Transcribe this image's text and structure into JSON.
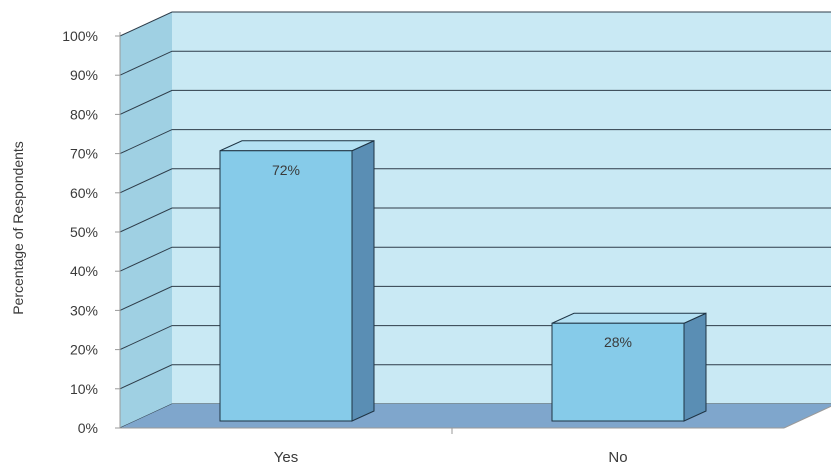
{
  "chart_data": {
    "type": "bar",
    "categories": [
      "Yes",
      "No"
    ],
    "values": [
      72,
      28
    ],
    "data_labels": [
      "72%",
      "28%"
    ],
    "ylabel": "Percentage of Respondents",
    "xlabel": "",
    "ylim": [
      0,
      100
    ],
    "yticks": [
      0,
      10,
      20,
      30,
      40,
      50,
      60,
      70,
      80,
      90,
      100
    ],
    "ytick_labels": [
      "0%",
      "10%",
      "20%",
      "30%",
      "40%",
      "50%",
      "60%",
      "70%",
      "80%",
      "90%",
      "100%"
    ],
    "grid": true,
    "legend": "none",
    "style": "3d"
  },
  "colors": {
    "wall": "#c9e9f4",
    "wall_edge": "#9fd0e3",
    "floor": "#7fa6cc",
    "gridline": "#2e3c49",
    "bar_front": "#86cbe9",
    "bar_top": "#b4e1f3",
    "bar_side": "#5a8eb4",
    "bar_outline": "#1f3444",
    "text": "#3a3a3a"
  }
}
